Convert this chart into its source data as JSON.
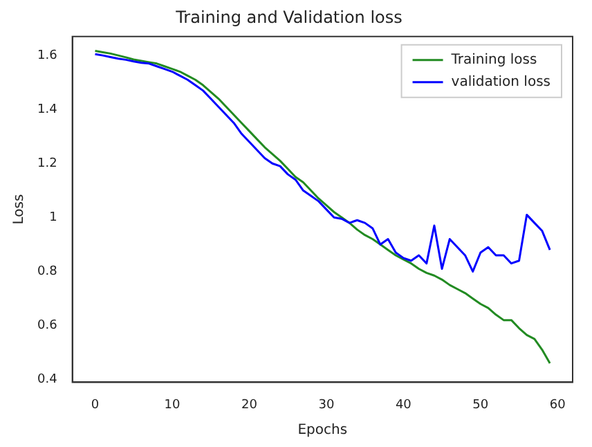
{
  "chart_data": {
    "type": "line",
    "title": "Training and Validation loss",
    "xlabel": "Epochs",
    "ylabel": "Loss",
    "x": [
      0,
      1,
      2,
      3,
      4,
      5,
      6,
      7,
      8,
      9,
      10,
      11,
      12,
      13,
      14,
      15,
      16,
      17,
      18,
      19,
      20,
      21,
      22,
      23,
      24,
      25,
      26,
      27,
      28,
      29,
      30,
      31,
      32,
      33,
      34,
      35,
      36,
      37,
      38,
      39,
      40,
      41,
      42,
      43,
      44,
      45,
      46,
      47,
      48,
      49,
      50,
      51,
      52,
      53,
      54,
      55,
      56,
      57,
      58,
      59
    ],
    "series": [
      {
        "name": "Training loss",
        "color": "#228b22",
        "values": [
          1.617,
          1.612,
          1.607,
          1.6,
          1.593,
          1.585,
          1.58,
          1.575,
          1.57,
          1.56,
          1.55,
          1.54,
          1.525,
          1.51,
          1.49,
          1.465,
          1.44,
          1.41,
          1.38,
          1.35,
          1.32,
          1.29,
          1.26,
          1.235,
          1.21,
          1.18,
          1.15,
          1.13,
          1.1,
          1.07,
          1.045,
          1.02,
          1.0,
          0.98,
          0.955,
          0.935,
          0.92,
          0.9,
          0.88,
          0.86,
          0.845,
          0.83,
          0.81,
          0.795,
          0.785,
          0.77,
          0.75,
          0.735,
          0.72,
          0.7,
          0.68,
          0.665,
          0.64,
          0.62,
          0.62,
          0.59,
          0.565,
          0.55,
          0.51,
          0.46
        ]
      },
      {
        "name": "validation loss",
        "color": "#0000ff",
        "values": [
          1.605,
          1.6,
          1.594,
          1.588,
          1.584,
          1.578,
          1.573,
          1.57,
          1.56,
          1.55,
          1.54,
          1.525,
          1.51,
          1.49,
          1.47,
          1.44,
          1.41,
          1.38,
          1.35,
          1.31,
          1.28,
          1.25,
          1.22,
          1.2,
          1.19,
          1.16,
          1.14,
          1.1,
          1.08,
          1.06,
          1.03,
          1.0,
          0.995,
          0.98,
          0.99,
          0.98,
          0.96,
          0.9,
          0.92,
          0.87,
          0.85,
          0.84,
          0.86,
          0.83,
          0.97,
          0.81,
          0.92,
          0.89,
          0.86,
          0.8,
          0.87,
          0.89,
          0.86,
          0.86,
          0.83,
          0.84,
          1.01,
          0.98,
          0.95,
          0.88
        ]
      }
    ],
    "xlim": [
      -2.95,
      61.95
    ],
    "xticks": [
      0,
      10,
      20,
      30,
      40,
      50,
      60
    ],
    "ylim": [
      0.39,
      1.67
    ],
    "yticks": [
      0.4,
      0.6,
      0.8,
      1.0,
      1.2,
      1.4,
      1.6
    ],
    "grid": false,
    "legend": "top right",
    "marker": "none",
    "line_style": "solid"
  }
}
